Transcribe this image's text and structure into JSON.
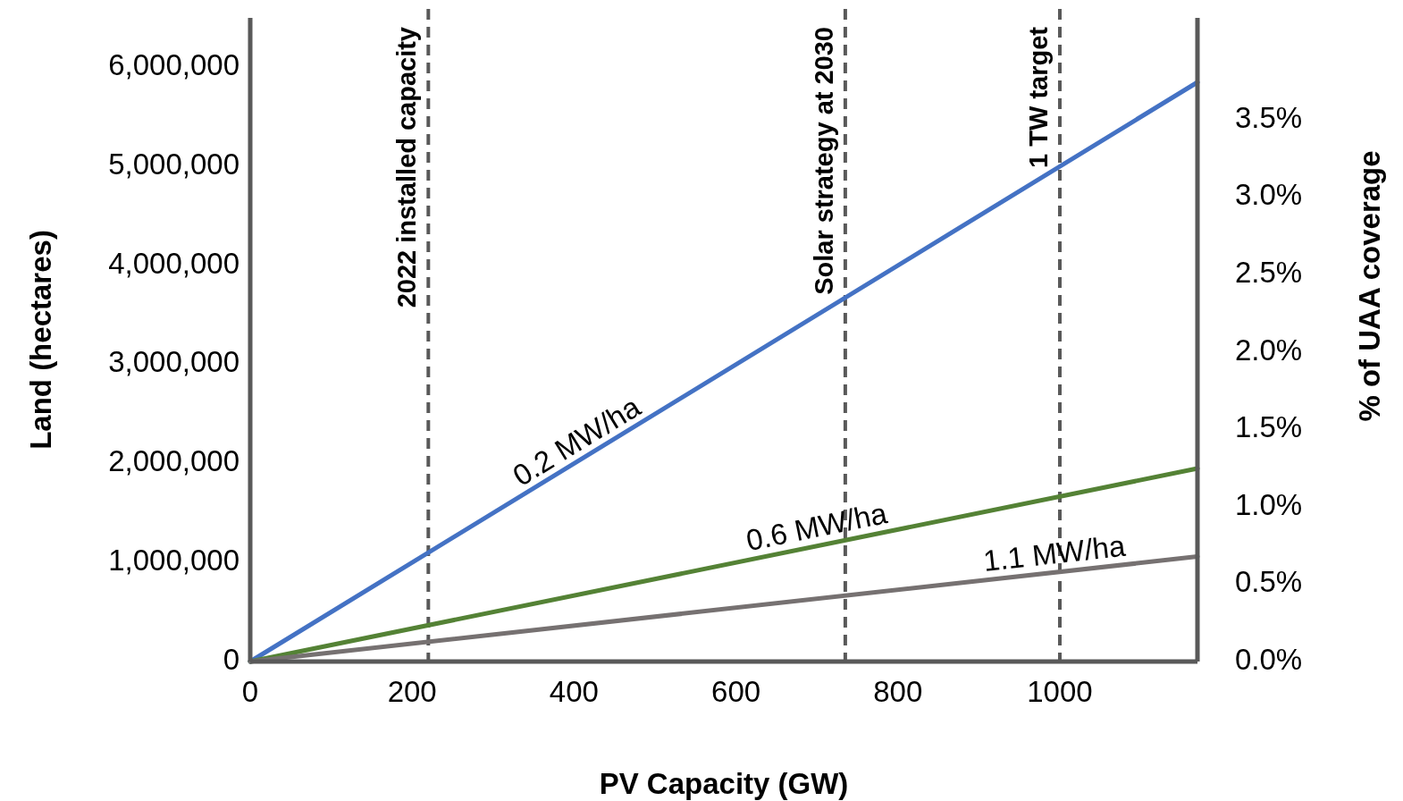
{
  "chart_data": {
    "type": "line",
    "xlabel": "PV Capacity (GW)",
    "ylabel": "Land (hectares)",
    "y2label": "% of UAA coverage",
    "xlim": [
      0,
      1170
    ],
    "xticks": [
      0,
      200,
      400,
      600,
      800,
      1000
    ],
    "ylim": [
      0,
      6500000
    ],
    "yticks": [
      {
        "value": 0,
        "label": "0"
      },
      {
        "value": 1000000,
        "label": "1,000,000"
      },
      {
        "value": 2000000,
        "label": "2,000,000"
      },
      {
        "value": 3000000,
        "label": "3,000,000"
      },
      {
        "value": 4000000,
        "label": "4,000,000"
      },
      {
        "value": 5000000,
        "label": "5,000,000"
      },
      {
        "value": 6000000,
        "label": "6,000,000"
      }
    ],
    "y2lim": [
      0,
      4.16
    ],
    "y2ticks": [
      {
        "value": 0,
        "label": "0.0%"
      },
      {
        "value": 0.5,
        "label": "0.5%"
      },
      {
        "value": 1,
        "label": "1.0%"
      },
      {
        "value": 1.5,
        "label": "1.5%"
      },
      {
        "value": 2,
        "label": "2.0%"
      },
      {
        "value": 2.5,
        "label": "2.5%"
      },
      {
        "value": 3,
        "label": "3.0%"
      },
      {
        "value": 3.5,
        "label": "3.5%"
      }
    ],
    "x": [
      0,
      1170
    ],
    "series": [
      {
        "name": "0.2 MW/ha",
        "color": "#4472c4",
        "values": [
          0,
          5850000
        ]
      },
      {
        "name": "0.6 MW/ha",
        "color": "#548235",
        "values": [
          0,
          1950000
        ]
      },
      {
        "name": "1.1 MW/ha",
        "color": "#767171",
        "values": [
          0,
          1060000
        ]
      }
    ],
    "ref_lines": [
      {
        "axis": "x",
        "value": 220,
        "label": "2022 installed capacity",
        "color": "#595959",
        "line_style": "dashed"
      },
      {
        "axis": "x",
        "value": 735,
        "label": "Solar strategy at 2030",
        "color": "#595959",
        "line_style": "dashed"
      },
      {
        "axis": "x",
        "value": 1000,
        "label": "1 TW target",
        "color": "#595959",
        "line_style": "dashed"
      }
    ],
    "grid": false,
    "legend": false,
    "marker": "none",
    "line_style": "solid"
  }
}
